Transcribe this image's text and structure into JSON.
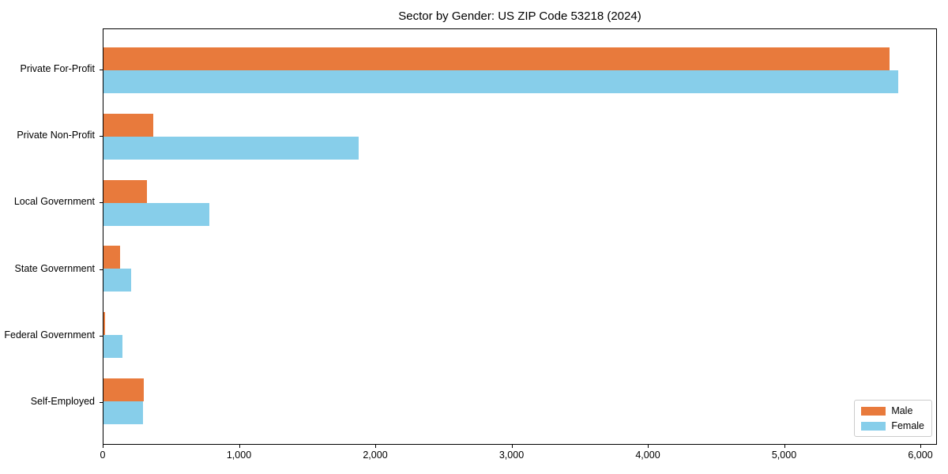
{
  "title": "Sector by Gender: US ZIP Code 53218 (2024)",
  "chart_data": {
    "type": "bar",
    "orientation": "horizontal",
    "title": "Sector by Gender: US ZIP Code 53218 (2024)",
    "categories": [
      "Private For-Profit",
      "Private Non-Profit",
      "Local Government",
      "State Government",
      "Federal Government",
      "Self-Employed"
    ],
    "series": [
      {
        "name": "Male",
        "color": "#e87a3c",
        "values": [
          5770,
          365,
          320,
          120,
          10,
          295
        ]
      },
      {
        "name": "Female",
        "color": "#87ceea",
        "values": [
          5830,
          1875,
          775,
          205,
          140,
          290
        ]
      }
    ],
    "xlabel": "",
    "ylabel": "",
    "xlim": [
      0,
      6120
    ],
    "x_tick_values": [
      0,
      1000,
      2000,
      3000,
      4000,
      5000,
      6000
    ],
    "x_tick_labels": [
      "0",
      "1,000",
      "2,000",
      "3,000",
      "4,000",
      "5,000",
      "6,000"
    ],
    "grid": false,
    "legend_position": "lower right"
  },
  "legend": {
    "items": [
      {
        "label": "Male",
        "color": "#e87a3c"
      },
      {
        "label": "Female",
        "color": "#87ceea"
      }
    ]
  }
}
